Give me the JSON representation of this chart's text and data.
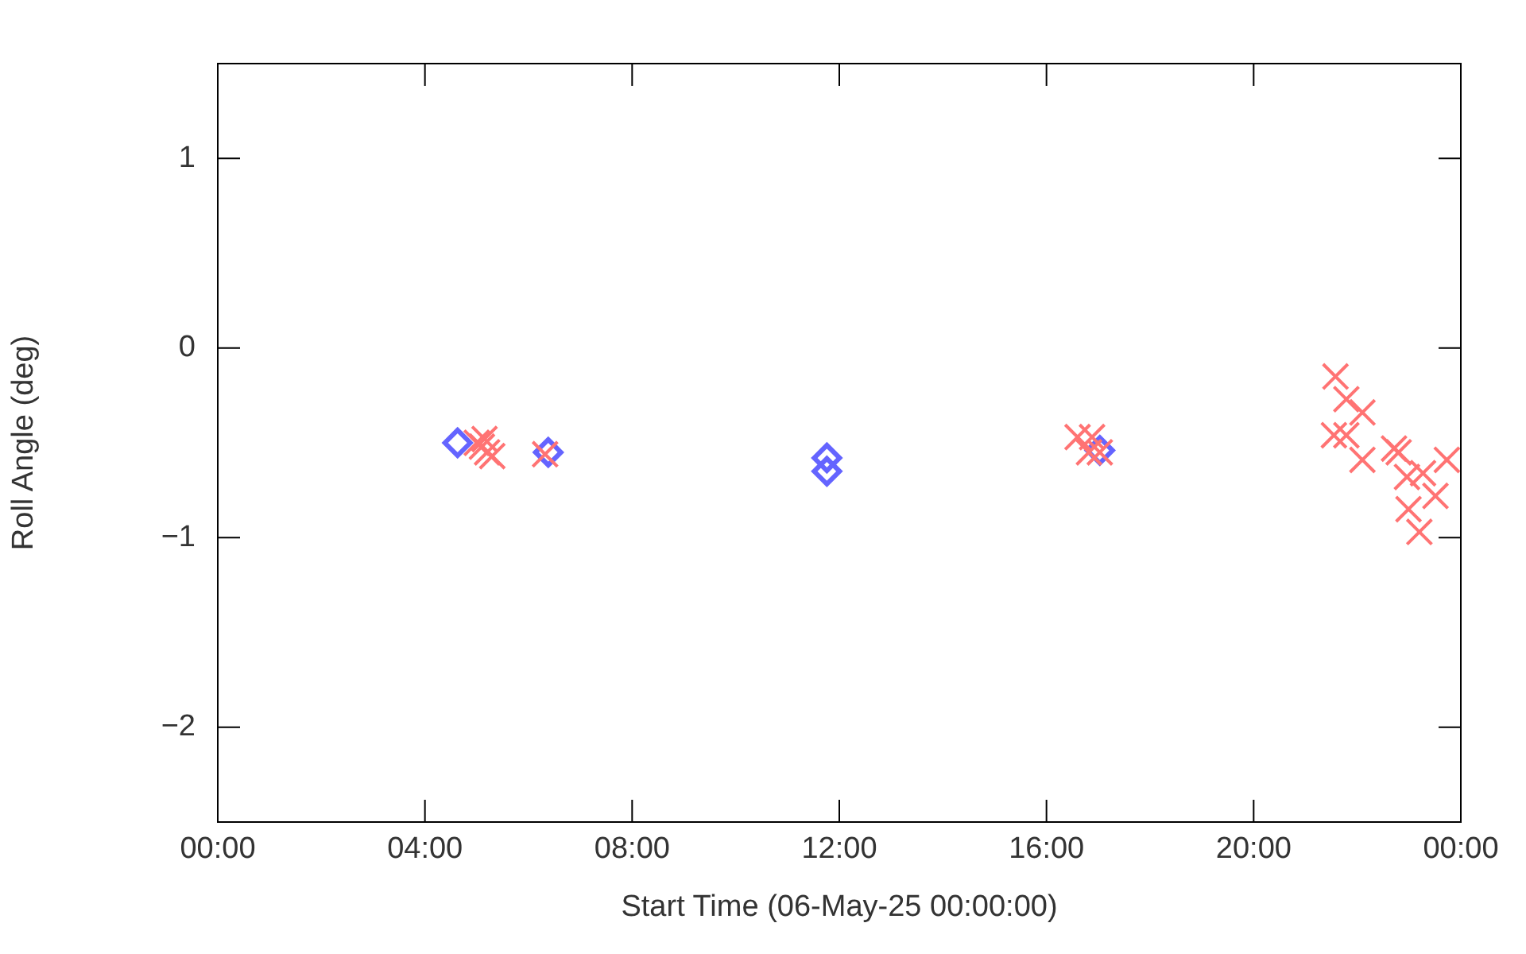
{
  "chart_data": {
    "type": "scatter",
    "xlabel": "Start Time (06-May-25 00:00:00)",
    "ylabel": "Roll Angle (deg)",
    "xlim": [
      0,
      24
    ],
    "xticks": [
      {
        "value": 0,
        "label": "00:00"
      },
      {
        "value": 4,
        "label": "04:00"
      },
      {
        "value": 8,
        "label": "08:00"
      },
      {
        "value": 12,
        "label": "12:00"
      },
      {
        "value": 16,
        "label": "16:00"
      },
      {
        "value": 20,
        "label": "20:00"
      },
      {
        "value": 24,
        "label": "00:00"
      }
    ],
    "ylim": [
      -2.5,
      1.5
    ],
    "yticks": [
      {
        "value": -2,
        "label": "−2"
      },
      {
        "value": -1,
        "label": "−1"
      },
      0,
      1
    ],
    "grid": false,
    "legend": false,
    "series": [
      {
        "color": "#ff7373",
        "marker": "cross",
        "x": [
          5.0,
          5.15,
          5.1,
          5.2,
          5.3,
          6.32,
          16.6,
          16.88,
          16.82,
          17.03,
          21.58,
          21.79,
          22.1,
          21.55,
          21.79,
          22.1,
          22.71,
          22.8,
          22.96,
          23.27,
          23.73,
          23.51,
          22.99,
          23.2
        ],
        "values": [
          -0.5,
          -0.48,
          -0.52,
          -0.55,
          -0.57,
          -0.56,
          -0.47,
          -0.47,
          -0.55,
          -0.55,
          -0.15,
          -0.27,
          -0.34,
          -0.46,
          -0.46,
          -0.59,
          -0.53,
          -0.55,
          -0.68,
          -0.66,
          -0.59,
          -0.78,
          -0.85,
          -0.97
        ]
      },
      {
        "color": "#6464ff",
        "marker": "diamond",
        "x": [
          4.63,
          6.38,
          11.76,
          11.76,
          17.03
        ],
        "values": [
          -0.5,
          -0.55,
          -0.58,
          -0.65,
          -0.54
        ]
      }
    ]
  }
}
